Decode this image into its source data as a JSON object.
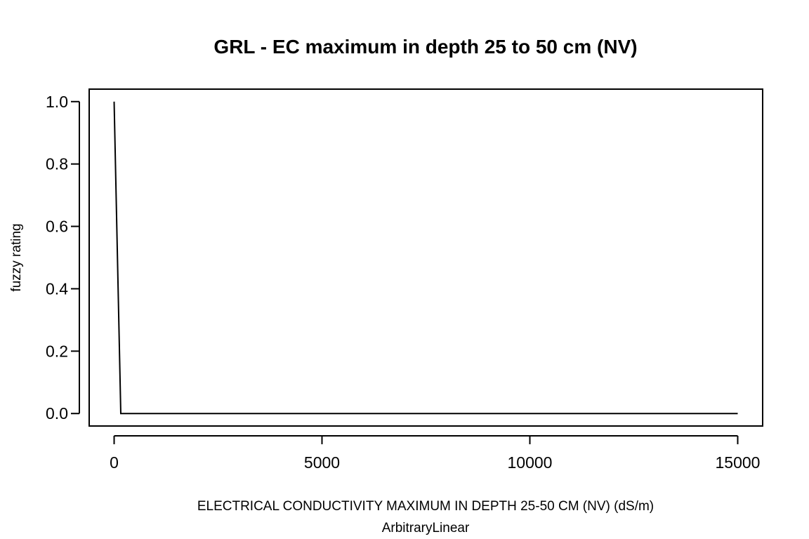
{
  "chart_data": {
    "type": "line",
    "title": "GRL - EC maximum in depth 25 to 50 cm (NV)",
    "xlabel": "ELECTRICAL CONDUCTIVITY MAXIMUM IN DEPTH 25-50 CM (NV) (dS/m)",
    "xlabel_sub": "ArbitraryLinear",
    "ylabel": "fuzzy rating",
    "xlim": [
      -600,
      15600
    ],
    "ylim": [
      -0.04,
      1.04
    ],
    "x_ticks": [
      0,
      5000,
      10000,
      15000
    ],
    "x_tick_labels": [
      "0",
      "5000",
      "10000",
      "15000"
    ],
    "y_ticks": [
      0.0,
      0.2,
      0.4,
      0.6,
      0.8,
      1.0
    ],
    "y_tick_labels": [
      "0.0",
      "0.2",
      "0.4",
      "0.6",
      "0.8",
      "1.0"
    ],
    "grid": false,
    "series": [
      {
        "x": [
          0,
          160,
          15000
        ],
        "y": [
          1.0,
          0.0,
          0.0
        ],
        "color": "#000000"
      }
    ]
  }
}
